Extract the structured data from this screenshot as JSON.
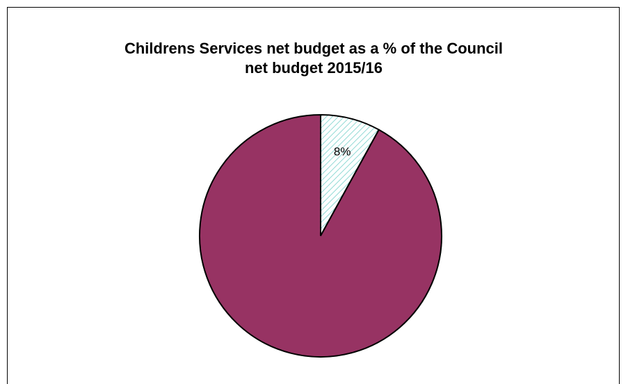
{
  "chart_data": {
    "type": "pie",
    "title": "Childrens Services net budget as a %  of the Council\nnet budget 2015/16",
    "slices": [
      {
        "value": 8,
        "label": "8%",
        "color": "#ffffff",
        "pattern": "hatch",
        "pattern_color": "#8fd9d4"
      },
      {
        "value": 92,
        "label": "",
        "color": "#973363"
      }
    ],
    "start_angle_deg": 0,
    "direction": "clockwise"
  }
}
